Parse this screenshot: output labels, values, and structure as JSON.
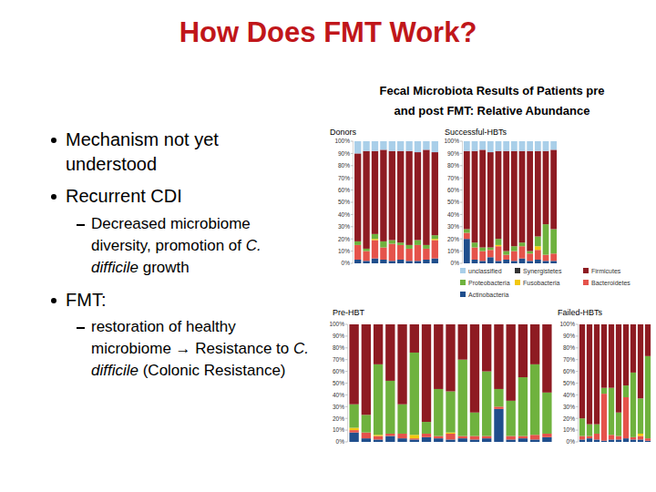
{
  "slide": {
    "title": "How Does FMT Work?",
    "bullets": [
      {
        "level": 1,
        "parts": [
          {
            "text": "Mechanism not yet understood"
          }
        ]
      },
      {
        "level": 1,
        "parts": [
          {
            "text": "Recurrent CDI"
          }
        ]
      },
      {
        "level": 2,
        "parts": [
          {
            "text": "Decreased microbiome diversity, promotion of "
          },
          {
            "text": "C. difficile",
            "italic": true
          },
          {
            "text": " growth"
          }
        ]
      },
      {
        "level": 1,
        "parts": [
          {
            "text": "FMT:"
          }
        ]
      },
      {
        "level": 2,
        "parts": [
          {
            "text": "restoration of healthy microbiome → Resistance to "
          },
          {
            "text": "C. difficile",
            "italic": true
          },
          {
            "text": " (Colonic Resistance)"
          }
        ]
      }
    ],
    "chart_heading": [
      "Fecal Microbiota Results of  Patients pre",
      "and post FMT: Relative Abundance"
    ]
  },
  "chart_data": [
    {
      "type": "bar",
      "stacked": true,
      "title": "Donors",
      "categories": [
        null,
        null,
        null,
        null,
        null,
        null,
        null,
        null,
        null,
        null
      ],
      "ylim": [
        0,
        100
      ],
      "yticks": [
        {
          "value": 0,
          "label": "0%"
        },
        {
          "value": 10,
          "label": "10%"
        },
        {
          "value": 20,
          "label": "20%"
        },
        {
          "value": 30,
          "label": "30%"
        },
        {
          "value": 40,
          "label": "40%"
        },
        {
          "value": 50,
          "label": "50%"
        },
        {
          "value": 60,
          "label": "60%"
        },
        {
          "value": 70,
          "label": "70%"
        },
        {
          "value": 80,
          "label": "80%"
        },
        {
          "value": 90,
          "label": "90%"
        },
        {
          "value": 100,
          "label": "100%"
        }
      ],
      "series": [
        {
          "name": "unclassified",
          "color": "#a9cfe9",
          "values": [
            10,
            8,
            8,
            7,
            8,
            8,
            8,
            9,
            7,
            9
          ]
        },
        {
          "name": "Synergistetes",
          "color": "#333333",
          "values": [
            0,
            0,
            0,
            0,
            0,
            0,
            0,
            0,
            0,
            0
          ]
        },
        {
          "name": "Firmicutes",
          "color": "#8e1b22",
          "values": [
            72,
            80,
            68,
            75,
            73,
            75,
            77,
            72,
            78,
            68
          ]
        },
        {
          "name": "Proteobacteria",
          "color": "#6fb23e",
          "values": [
            3,
            2,
            4,
            5,
            3,
            2,
            3,
            4,
            3,
            3
          ]
        },
        {
          "name": "Fusobacteria",
          "color": "#f2c811",
          "values": [
            0,
            0,
            1,
            0,
            0,
            0,
            0,
            0,
            0,
            1
          ]
        },
        {
          "name": "Bacteroidetes",
          "color": "#e5534b",
          "values": [
            12,
            8,
            15,
            10,
            14,
            12,
            10,
            13,
            9,
            15
          ]
        },
        {
          "name": "Actinobacteria",
          "color": "#1f4e8c",
          "values": [
            3,
            2,
            4,
            3,
            2,
            3,
            2,
            2,
            3,
            4
          ]
        }
      ]
    },
    {
      "type": "bar",
      "stacked": true,
      "title": "Successful-HBTs",
      "categories": [
        null,
        null,
        null,
        null,
        null,
        null,
        null,
        null,
        null,
        null,
        null,
        null
      ],
      "ylim": [
        0,
        100
      ],
      "yticks": [
        {
          "value": 0,
          "label": "0%"
        },
        {
          "value": 10,
          "label": "10%"
        },
        {
          "value": 20,
          "label": "20%"
        },
        {
          "value": 30,
          "label": "30%"
        },
        {
          "value": 40,
          "label": "40%"
        },
        {
          "value": 50,
          "label": "50%"
        },
        {
          "value": 60,
          "label": "60%"
        },
        {
          "value": 70,
          "label": "70%"
        },
        {
          "value": 80,
          "label": "80%"
        },
        {
          "value": 90,
          "label": "90%"
        },
        {
          "value": 100,
          "label": "100%"
        }
      ],
      "series": [
        {
          "color": "#a9cfe9",
          "values": [
            8,
            8,
            7,
            9,
            8,
            8,
            8,
            8,
            8,
            8,
            8,
            7
          ]
        },
        {
          "color": "#333333",
          "values": [
            0,
            0,
            0,
            0,
            0,
            0,
            0,
            0,
            0,
            0,
            0,
            0
          ]
        },
        {
          "color": "#8e1b22",
          "values": [
            64,
            75,
            80,
            78,
            72,
            82,
            78,
            75,
            82,
            70,
            60,
            65
          ]
        },
        {
          "color": "#6fb23e",
          "values": [
            3,
            4,
            3,
            2,
            5,
            3,
            4,
            3,
            2,
            8,
            25,
            20
          ]
        },
        {
          "color": "#f2c811",
          "values": [
            0,
            0,
            0,
            0,
            1,
            0,
            0,
            0,
            0,
            3,
            0,
            0
          ]
        },
        {
          "color": "#e5534b",
          "values": [
            5,
            10,
            8,
            6,
            12,
            4,
            8,
            10,
            6,
            8,
            5,
            6
          ]
        },
        {
          "color": "#1f4e8c",
          "values": [
            20,
            3,
            2,
            5,
            2,
            3,
            2,
            4,
            2,
            3,
            2,
            2
          ]
        }
      ]
    },
    {
      "type": "bar",
      "stacked": true,
      "title": "Pre-HBT",
      "categories": [
        null,
        null,
        null,
        null,
        null,
        null,
        null,
        null,
        null,
        null,
        null,
        null,
        null,
        null,
        null,
        null,
        null
      ],
      "ylim": [
        0,
        100
      ],
      "yticks": [
        {
          "value": 0,
          "label": "0%"
        },
        {
          "value": 10,
          "label": "10%"
        },
        {
          "value": 20,
          "label": "20%"
        },
        {
          "value": 30,
          "label": "30%"
        },
        {
          "value": 40,
          "label": "40%"
        },
        {
          "value": 50,
          "label": "50%"
        },
        {
          "value": 60,
          "label": "60%"
        },
        {
          "value": 70,
          "label": "70%"
        },
        {
          "value": 80,
          "label": "80%"
        },
        {
          "value": 90,
          "label": "90%"
        },
        {
          "value": 100,
          "label": "100%"
        }
      ],
      "series": [
        {
          "color": "#a9cfe9",
          "values": [
            0,
            0,
            0,
            0,
            0,
            0,
            0,
            0,
            0,
            0,
            0,
            0,
            0,
            0,
            0,
            0,
            0
          ]
        },
        {
          "color": "#333333",
          "values": [
            0,
            0,
            0,
            0,
            0,
            0,
            0,
            0,
            0,
            0,
            0,
            0,
            0,
            0,
            0,
            0,
            0
          ]
        },
        {
          "color": "#8e1b22",
          "values": [
            68,
            77,
            34,
            48,
            68,
            24,
            83,
            55,
            57,
            30,
            75,
            40,
            55,
            65,
            45,
            34,
            58
          ]
        },
        {
          "color": "#6fb23e",
          "values": [
            20,
            15,
            60,
            45,
            25,
            70,
            10,
            40,
            35,
            65,
            20,
            55,
            15,
            30,
            50,
            60,
            35
          ]
        },
        {
          "color": "#f2c811",
          "values": [
            2,
            0,
            1,
            0,
            0,
            3,
            0,
            0,
            1,
            0,
            0,
            0,
            0,
            0,
            0,
            0,
            0
          ]
        },
        {
          "color": "#e5534b",
          "values": [
            2,
            5,
            3,
            2,
            4,
            1,
            3,
            2,
            5,
            2,
            3,
            2,
            2,
            3,
            2,
            4,
            3
          ]
        },
        {
          "color": "#1f4e8c",
          "values": [
            8,
            3,
            2,
            5,
            3,
            2,
            4,
            3,
            2,
            3,
            2,
            3,
            28,
            2,
            3,
            2,
            4
          ]
        }
      ]
    },
    {
      "type": "bar",
      "stacked": true,
      "title": "Failed-HBTs",
      "categories": [
        null,
        null,
        null,
        null,
        null,
        null,
        null,
        null,
        null,
        null
      ],
      "ylim": [
        0,
        100
      ],
      "yticks": [
        {
          "value": 0,
          "label": "0%"
        },
        {
          "value": 10,
          "label": "10%"
        },
        {
          "value": 20,
          "label": "20%"
        },
        {
          "value": 30,
          "label": "30%"
        },
        {
          "value": 40,
          "label": "40%"
        },
        {
          "value": 50,
          "label": "50%"
        },
        {
          "value": 60,
          "label": "60%"
        },
        {
          "value": 70,
          "label": "70%"
        },
        {
          "value": 80,
          "label": "80%"
        },
        {
          "value": 90,
          "label": "90%"
        },
        {
          "value": 100,
          "label": "100%"
        }
      ],
      "series": [
        {
          "color": "#a9cfe9",
          "values": [
            0,
            0,
            0,
            0,
            0,
            0,
            0,
            0,
            0,
            0
          ]
        },
        {
          "color": "#333333",
          "values": [
            0,
            0,
            0,
            0,
            0,
            0,
            0,
            0,
            0,
            0
          ]
        },
        {
          "color": "#8e1b22",
          "values": [
            80,
            85,
            85,
            54,
            54,
            75,
            52,
            41,
            63,
            27
          ]
        },
        {
          "color": "#6fb23e",
          "values": [
            15,
            10,
            8,
            5,
            40,
            20,
            10,
            55,
            30,
            70
          ]
        },
        {
          "color": "#f2c811",
          "values": [
            0,
            0,
            0,
            0,
            0,
            0,
            0,
            0,
            2,
            0
          ]
        },
        {
          "color": "#e5534b",
          "values": [
            3,
            2,
            5,
            40,
            4,
            3,
            35,
            2,
            3,
            2
          ]
        },
        {
          "color": "#1f4e8c",
          "values": [
            2,
            3,
            2,
            1,
            2,
            2,
            3,
            2,
            2,
            1
          ]
        }
      ]
    }
  ]
}
